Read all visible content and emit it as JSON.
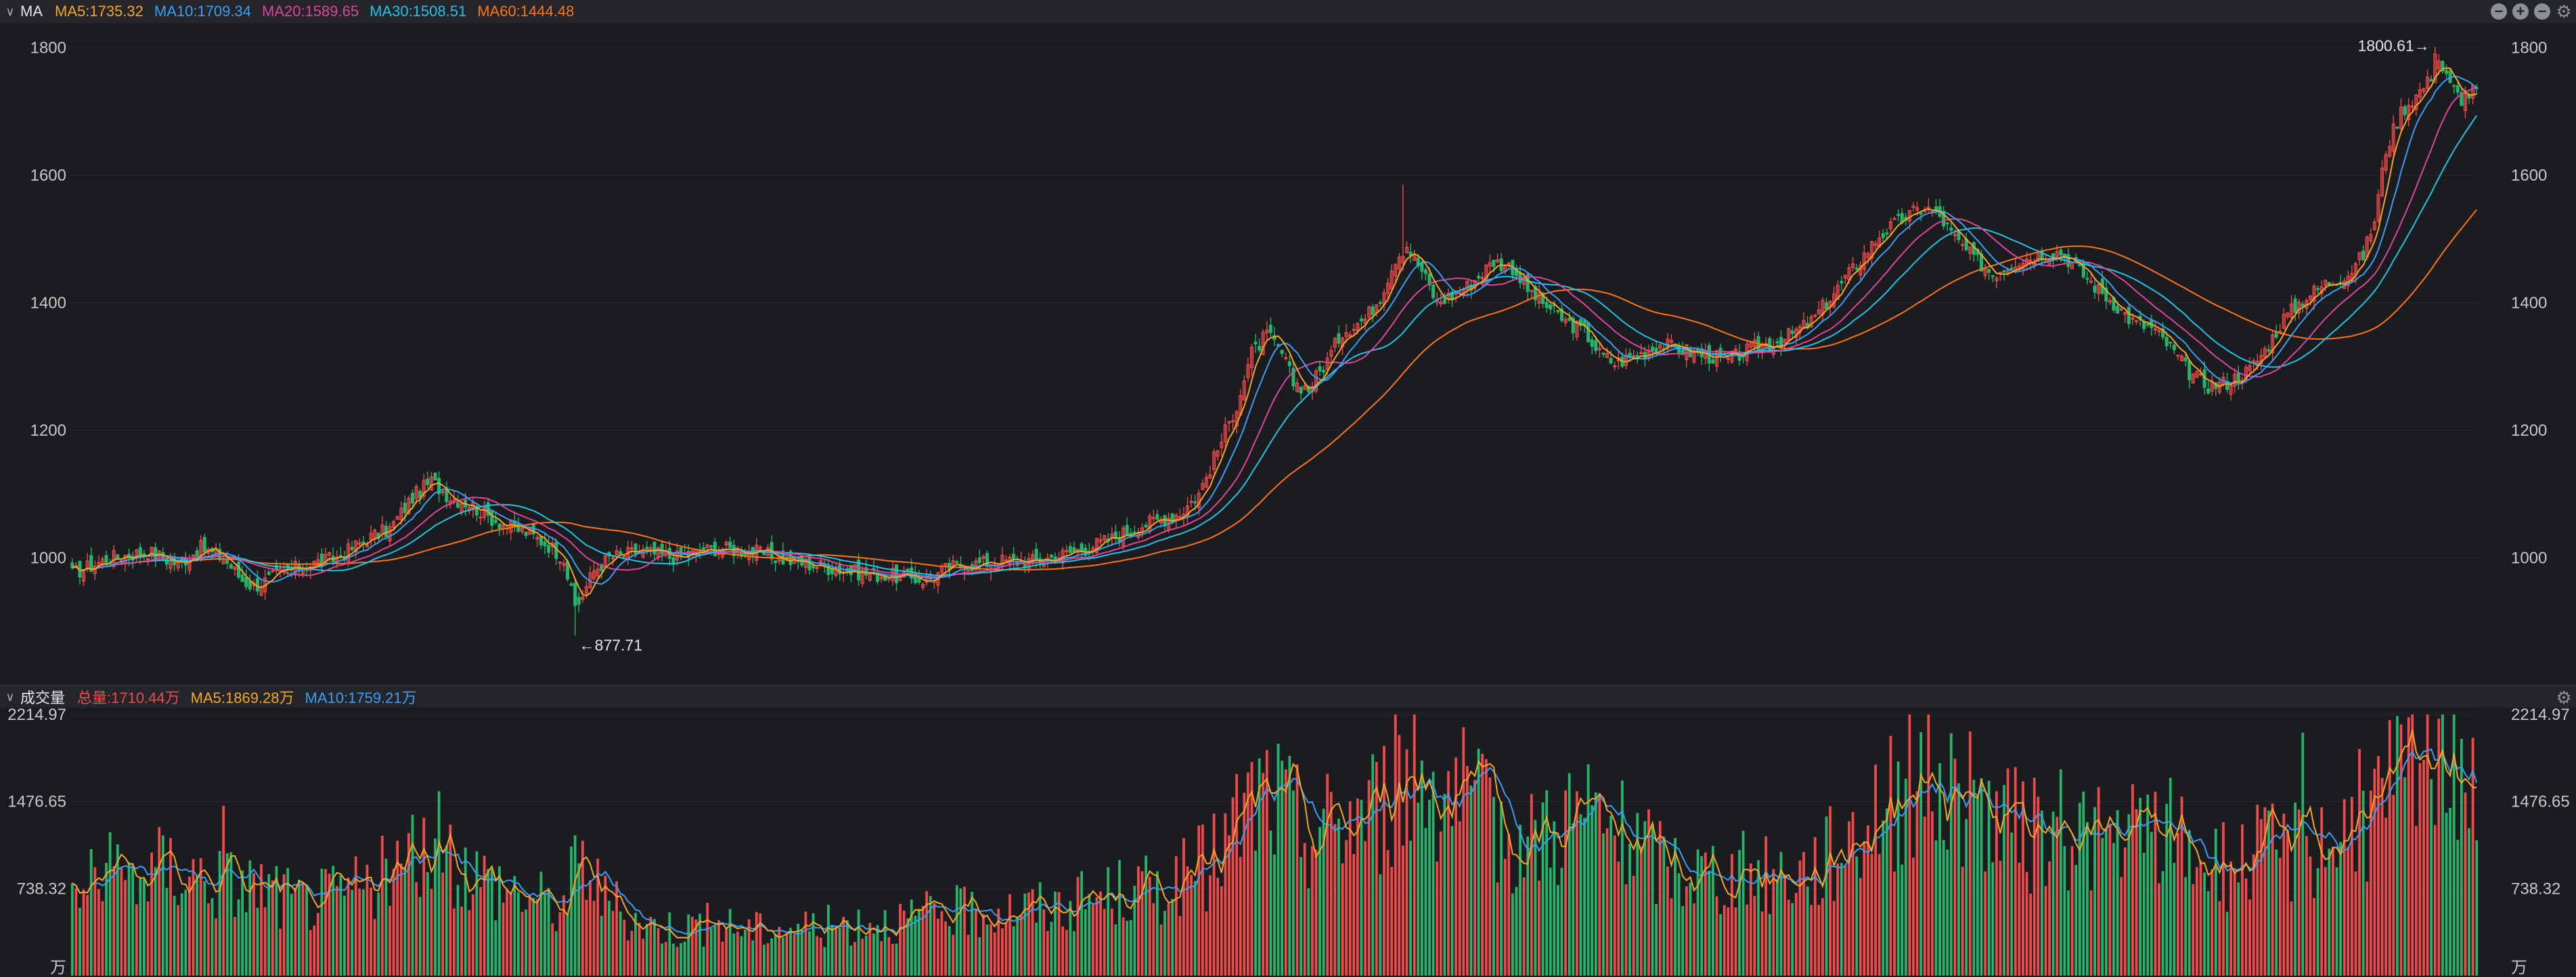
{
  "price_panel": {
    "title": "MA",
    "indicators": [
      {
        "label": "MA5:1735.32",
        "color": "#f5a623"
      },
      {
        "label": "MA10:1709.34",
        "color": "#3a9ff2"
      },
      {
        "label": "MA20:1589.65",
        "color": "#e0459a"
      },
      {
        "label": "MA30:1508.51",
        "color": "#22c4e6"
      },
      {
        "label": "MA60:1444.48",
        "color": "#ff7417"
      }
    ],
    "controls": [
      {
        "name": "minimize-icon",
        "glyph": "−"
      },
      {
        "name": "add-icon",
        "glyph": "+"
      },
      {
        "name": "remove-icon",
        "glyph": "−"
      },
      {
        "name": "gear-icon",
        "glyph": "⚙"
      }
    ]
  },
  "volume_panel": {
    "title": "成交量",
    "indicators": [
      {
        "label": "总量:1710.44万",
        "color": "#ef4a4a"
      },
      {
        "label": "MA5:1869.28万",
        "color": "#f5a623"
      },
      {
        "label": "MA10:1759.21万",
        "color": "#3a9ff2"
      }
    ],
    "gear_glyph": "⚙"
  },
  "chart_data": [
    {
      "type": "candlestick",
      "ylim": [
        820,
        1830
      ],
      "yticks": [
        1000,
        1200,
        1400,
        1600,
        1800
      ],
      "annotations": [
        {
          "label": "←877.71",
          "value": 877.71
        },
        {
          "label": "1800.61→",
          "value": 1800.61
        }
      ],
      "ma_colors": {
        "MA5": "#f5a623",
        "MA10": "#3a9ff2",
        "MA20": "#e0459a",
        "MA30": "#22c4e6",
        "MA60": "#ff7417"
      },
      "up_color": "#ef4a4a",
      "down_color": "#26b36a",
      "anchors": [
        [
          0,
          975
        ],
        [
          10,
          1000
        ],
        [
          20,
          1010
        ],
        [
          28,
          990
        ],
        [
          34,
          1015
        ],
        [
          40,
          1000
        ],
        [
          45,
          965
        ],
        [
          48,
          955
        ],
        [
          55,
          975
        ],
        [
          60,
          985
        ],
        [
          70,
          1000
        ],
        [
          78,
          1030
        ],
        [
          84,
          1045
        ],
        [
          90,
          1095
        ],
        [
          95,
          1120
        ],
        [
          100,
          1095
        ],
        [
          105,
          1085
        ],
        [
          110,
          1065
        ],
        [
          115,
          1050
        ],
        [
          120,
          1040
        ],
        [
          126,
          1020
        ],
        [
          130,
          1000
        ],
        [
          132,
          945
        ],
        [
          134,
          930
        ],
        [
          138,
          980
        ],
        [
          142,
          1000
        ],
        [
          150,
          1010
        ],
        [
          160,
          1000
        ],
        [
          170,
          1015
        ],
        [
          180,
          1010
        ],
        [
          190,
          995
        ],
        [
          200,
          985
        ],
        [
          210,
          975
        ],
        [
          220,
          970
        ],
        [
          226,
          965
        ],
        [
          232,
          985
        ],
        [
          238,
          990
        ],
        [
          245,
          995
        ],
        [
          255,
          995
        ],
        [
          262,
          1005
        ],
        [
          268,
          1015
        ],
        [
          275,
          1030
        ],
        [
          282,
          1050
        ],
        [
          288,
          1060
        ],
        [
          293,
          1070
        ],
        [
          298,
          1100
        ],
        [
          302,
          1155
        ],
        [
          308,
          1240
        ],
        [
          312,
          1320
        ],
        [
          316,
          1350
        ],
        [
          320,
          1320
        ],
        [
          323,
          1275
        ],
        [
          327,
          1265
        ],
        [
          332,
          1310
        ],
        [
          336,
          1355
        ],
        [
          342,
          1375
        ],
        [
          346,
          1410
        ],
        [
          350,
          1470
        ],
        [
          353,
          1490
        ],
        [
          357,
          1450
        ],
        [
          361,
          1400
        ],
        [
          366,
          1415
        ],
        [
          370,
          1430
        ],
        [
          376,
          1465
        ],
        [
          381,
          1455
        ],
        [
          385,
          1420
        ],
        [
          390,
          1395
        ],
        [
          395,
          1370
        ],
        [
          400,
          1355
        ],
        [
          404,
          1320
        ],
        [
          408,
          1305
        ],
        [
          415,
          1320
        ],
        [
          420,
          1335
        ],
        [
          430,
          1320
        ],
        [
          438,
          1310
        ],
        [
          445,
          1330
        ],
        [
          452,
          1340
        ],
        [
          460,
          1370
        ],
        [
          466,
          1415
        ],
        [
          472,
          1460
        ],
        [
          478,
          1505
        ],
        [
          485,
          1535
        ],
        [
          490,
          1550
        ],
        [
          494,
          1535
        ],
        [
          498,
          1500
        ],
        [
          503,
          1470
        ],
        [
          508,
          1445
        ],
        [
          514,
          1465
        ],
        [
          520,
          1475
        ],
        [
          526,
          1480
        ],
        [
          531,
          1450
        ],
        [
          536,
          1420
        ],
        [
          540,
          1400
        ],
        [
          545,
          1370
        ],
        [
          550,
          1360
        ],
        [
          555,
          1330
        ],
        [
          560,
          1290
        ],
        [
          565,
          1270
        ],
        [
          570,
          1275
        ],
        [
          576,
          1295
        ],
        [
          580,
          1325
        ],
        [
          585,
          1375
        ],
        [
          590,
          1405
        ],
        [
          596,
          1430
        ],
        [
          602,
          1445
        ],
        [
          606,
          1475
        ],
        [
          609,
          1530
        ],
        [
          612,
          1640
        ],
        [
          616,
          1700
        ],
        [
          620,
          1725
        ],
        [
          623,
          1745
        ],
        [
          626,
          1780
        ],
        [
          629,
          1740
        ],
        [
          632,
          1720
        ],
        [
          636,
          1735
        ]
      ]
    },
    {
      "type": "bar",
      "title": "成交量",
      "unit": "万",
      "ylim": [
        0,
        2214.97
      ],
      "yticks": [
        738.32,
        1476.65,
        2214.97
      ],
      "ytick_labels": [
        "738.32",
        "1476.65",
        "2214.97"
      ],
      "ma_colors": {
        "MA5": "#f5a623",
        "MA10": "#3a9ff2"
      },
      "anchors": [
        [
          0,
          740
        ],
        [
          10,
          880
        ],
        [
          20,
          900
        ],
        [
          24,
          960
        ],
        [
          30,
          920
        ],
        [
          40,
          820
        ],
        [
          50,
          780
        ],
        [
          60,
          640
        ],
        [
          70,
          700
        ],
        [
          80,
          820
        ],
        [
          86,
          930
        ],
        [
          90,
          1000
        ],
        [
          96,
          1140
        ],
        [
          100,
          1060
        ],
        [
          108,
          860
        ],
        [
          116,
          760
        ],
        [
          124,
          660
        ],
        [
          130,
          600
        ],
        [
          133,
          930
        ],
        [
          136,
          1000
        ],
        [
          140,
          700
        ],
        [
          146,
          520
        ],
        [
          152,
          440
        ],
        [
          160,
          420
        ],
        [
          170,
          460
        ],
        [
          180,
          400
        ],
        [
          190,
          420
        ],
        [
          200,
          430
        ],
        [
          210,
          470
        ],
        [
          220,
          480
        ],
        [
          230,
          540
        ],
        [
          240,
          560
        ],
        [
          250,
          580
        ],
        [
          260,
          600
        ],
        [
          268,
          650
        ],
        [
          275,
          700
        ],
        [
          280,
          730
        ],
        [
          290,
          780
        ],
        [
          300,
          950
        ],
        [
          306,
          1200
        ],
        [
          310,
          1420
        ],
        [
          315,
          1600
        ],
        [
          320,
          1480
        ],
        [
          326,
          1250
        ],
        [
          332,
          1300
        ],
        [
          340,
          1420
        ],
        [
          346,
          1500
        ],
        [
          352,
          1700
        ],
        [
          356,
          1780
        ],
        [
          360,
          1720
        ],
        [
          366,
          1600
        ],
        [
          372,
          1380
        ],
        [
          380,
          1250
        ],
        [
          385,
          1150
        ],
        [
          390,
          1300
        ],
        [
          396,
          1400
        ],
        [
          402,
          1380
        ],
        [
          410,
          1200
        ],
        [
          420,
          1000
        ],
        [
          430,
          900
        ],
        [
          440,
          880
        ],
        [
          450,
          880
        ],
        [
          460,
          920
        ],
        [
          466,
          1100
        ],
        [
          472,
          1300
        ],
        [
          478,
          1500
        ],
        [
          484,
          1600
        ],
        [
          488,
          1800
        ],
        [
          492,
          1720
        ],
        [
          496,
          1640
        ],
        [
          500,
          1520
        ],
        [
          506,
          1460
        ],
        [
          512,
          1300
        ],
        [
          518,
          1200
        ],
        [
          524,
          1240
        ],
        [
          530,
          1320
        ],
        [
          536,
          1200
        ],
        [
          540,
          1150
        ],
        [
          546,
          1200
        ],
        [
          552,
          1280
        ],
        [
          558,
          1200
        ],
        [
          564,
          1000
        ],
        [
          570,
          950
        ],
        [
          576,
          1020
        ],
        [
          582,
          1080
        ],
        [
          590,
          1140
        ],
        [
          598,
          1200
        ],
        [
          604,
          1350
        ],
        [
          610,
          1500
        ],
        [
          616,
          1700
        ],
        [
          620,
          1830
        ],
        [
          625,
          1950
        ],
        [
          630,
          2050
        ],
        [
          636,
          1750
        ]
      ]
    }
  ]
}
